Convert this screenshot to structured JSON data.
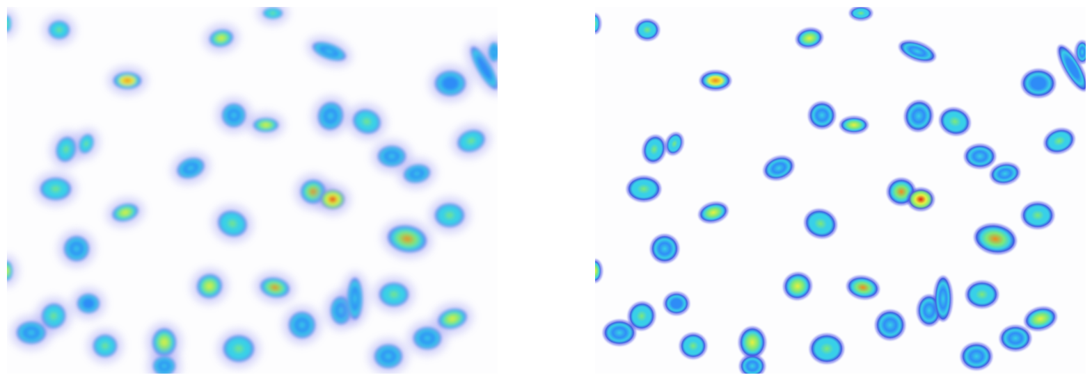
{
  "figure": {
    "panels": [
      {
        "id": "blurred-heatmap",
        "style": "blurred"
      },
      {
        "id": "sharp-heatmap",
        "style": "sharp"
      }
    ],
    "colormap": [
      "#3a3af0",
      "#2f8cf7",
      "#38d0e8",
      "#7ee87a",
      "#e8f040",
      "#f08a20",
      "#e02010"
    ],
    "background": "#ffffff"
  }
}
